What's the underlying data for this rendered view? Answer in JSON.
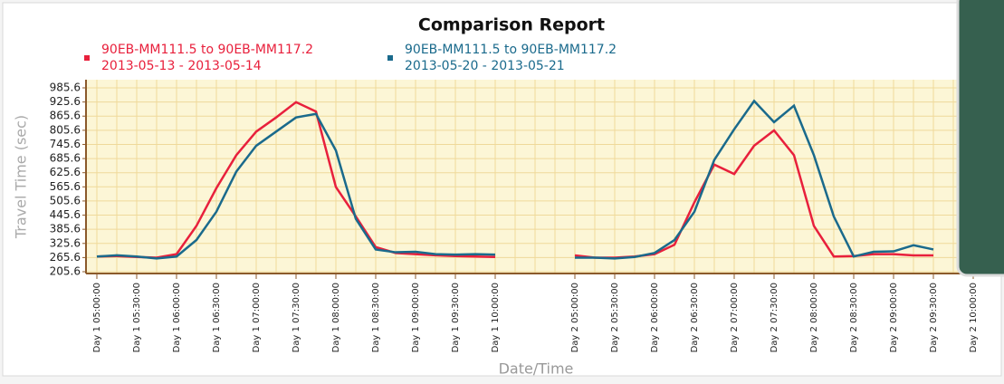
{
  "chart_data": {
    "type": "line",
    "title": "Comparison Report",
    "x_label": "Date/Time",
    "y_label": "Travel Time (sec)",
    "categories": [
      "Day 1 05:00:00",
      null,
      "Day 1 05:30:00",
      null,
      "Day 1 06:00:00",
      null,
      "Day 1 06:30:00",
      null,
      "Day 1 07:00:00",
      null,
      "Day 1 07:30:00",
      null,
      "Day 1 08:00:00",
      null,
      "Day 1 08:30:00",
      null,
      "Day 1 09:00:00",
      null,
      "Day 1 09:30:00",
      null,
      "Day 1 10:00:00",
      null,
      null,
      null,
      "Day 2 05:00:00",
      null,
      "Day 2 05:30:00",
      null,
      "Day 2 06:00:00",
      null,
      "Day 2 06:30:00",
      null,
      "Day 2 07:00:00",
      null,
      "Day 2 07:30:00",
      null,
      "Day 2 08:00:00",
      null,
      "Day 2 08:30:00",
      null,
      "Day 2 09:00:00",
      null,
      "Day 2 09:30:00",
      null,
      "Day 2 10:00:00"
    ],
    "series": [
      {
        "name": "90EB-MM111.5 to 90EB-MM117.2",
        "period": "2013-05-13 - 2013-05-14",
        "color": "#e8203c",
        "values": [
          270,
          272,
          268,
          265,
          280,
          400,
          560,
          700,
          800,
          860,
          925,
          885,
          565,
          440,
          310,
          285,
          280,
          275,
          272,
          270,
          268,
          null,
          null,
          null,
          275,
          265,
          265,
          270,
          280,
          320,
          500,
          660,
          620,
          740,
          805,
          700,
          400,
          270,
          272,
          280,
          280,
          275,
          275,
          null,
          null
        ]
      },
      {
        "name": "90EB-MM111.5 to 90EB-MM117.2",
        "period": "2013-05-20 - 2013-05-21",
        "color": "#1a6a8c",
        "values": [
          270,
          275,
          270,
          262,
          270,
          340,
          460,
          630,
          740,
          800,
          860,
          875,
          720,
          430,
          300,
          288,
          290,
          280,
          278,
          280,
          278,
          null,
          null,
          null,
          265,
          265,
          262,
          268,
          285,
          340,
          460,
          680,
          810,
          930,
          840,
          910,
          700,
          440,
          270,
          290,
          292,
          318,
          300,
          null,
          null
        ]
      }
    ],
    "ylim": [
      205.6,
      985.6
    ],
    "yticks": [
      205.6,
      265.6,
      325.6,
      385.6,
      445.6,
      505.6,
      565.6,
      625.6,
      685.6,
      745.6,
      805.6,
      865.6,
      925.6,
      985.6
    ],
    "grid": true
  }
}
